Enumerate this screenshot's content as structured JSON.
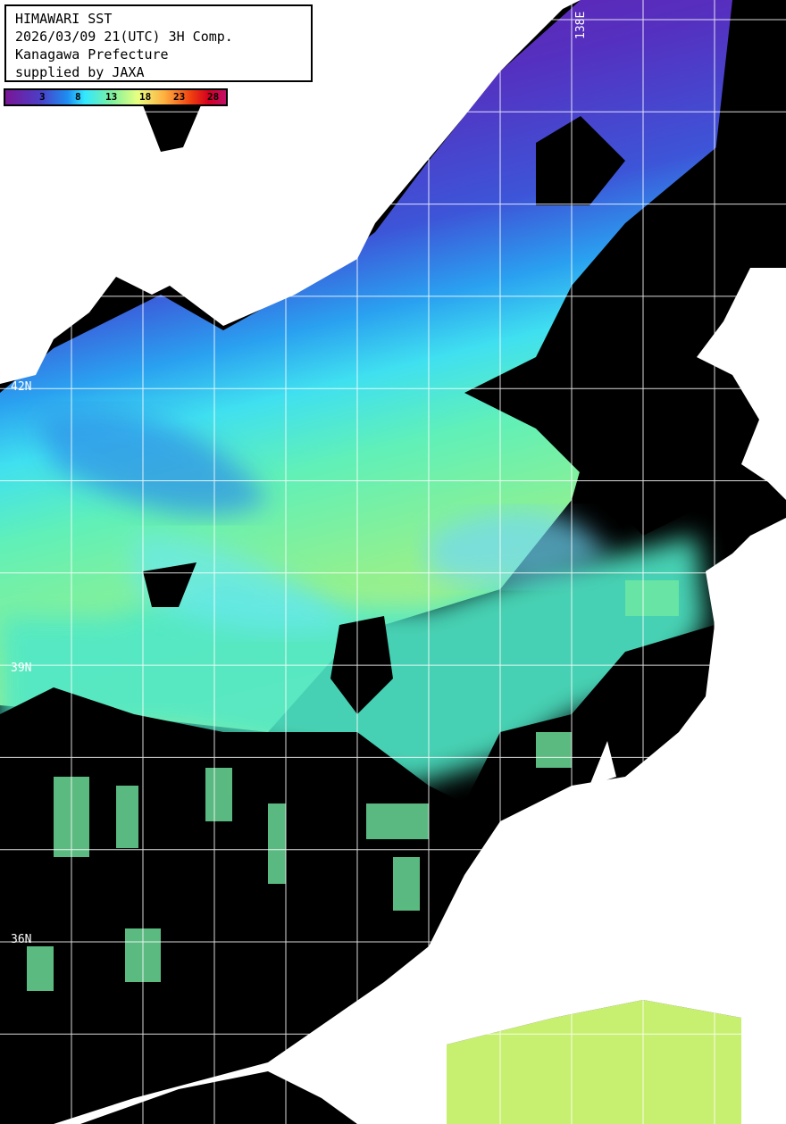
{
  "title": {
    "lines": [
      "HIMAWARI SST",
      "2026/03/09 21(UTC) 3H Comp.",
      "Kanagawa Prefecture",
      "supplied by JAXA"
    ]
  },
  "colorbar": {
    "ticks": [
      "3",
      "8",
      "13",
      "18",
      "23",
      "28"
    ],
    "unit_range": [
      0,
      30
    ],
    "colors": [
      "#7a1596",
      "#4b3fc8",
      "#1e8cf0",
      "#33e8ff",
      "#7cf0a0",
      "#e8ff80",
      "#ffb040",
      "#f04010",
      "#c0106a"
    ]
  },
  "grid_labels": {
    "lat": [
      "42N",
      "39N",
      "36N"
    ],
    "lon": [
      "138E"
    ]
  },
  "colors": {
    "land": "#ffffff",
    "no_data": "#000000",
    "grid": "#ffffff"
  }
}
